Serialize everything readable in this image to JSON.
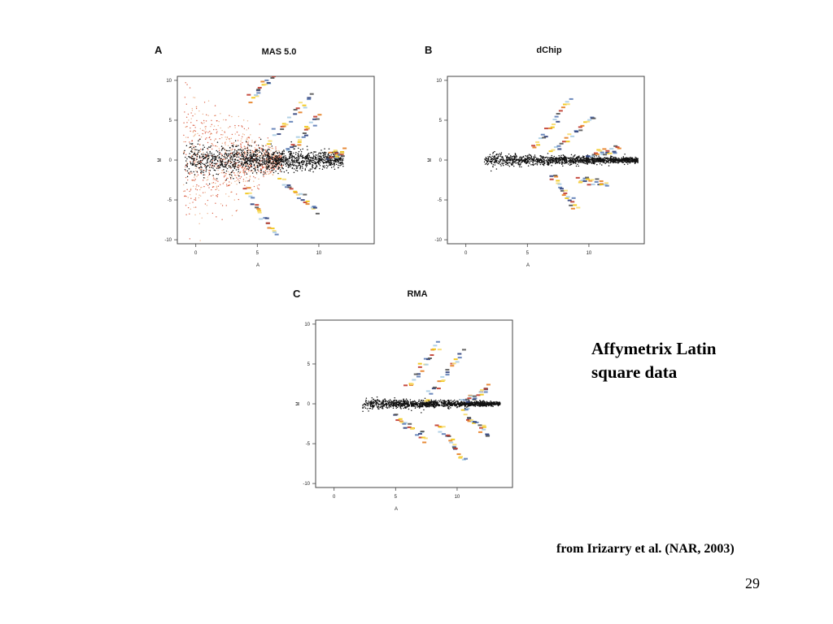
{
  "slide": {
    "caption": "Affymetrix Latin square data",
    "caption_lines": [
      "Affymetrix Latin",
      "square data"
    ],
    "citation": "from Irizarry et al. (NAR, 2003)",
    "page_number": "29"
  },
  "colors": {
    "background_points": "#111111",
    "mas5_noise": "#d23a1a",
    "spike_series": [
      "#c0392b",
      "#e67e22",
      "#f1c40f",
      "#f7dc6f",
      "#a9cce3",
      "#5b7bb5",
      "#2c3e7a",
      "#555555"
    ]
  },
  "chart_data": [
    {
      "id": "A",
      "type": "scatter",
      "panel_label": "A",
      "title": "MAS 5.0",
      "xlabel": "A",
      "ylabel": "M",
      "xlim": [
        -1.5,
        14.5
      ],
      "ylim": [
        -10.5,
        10.5
      ],
      "xticks": [
        0,
        5,
        10
      ],
      "yticks": [
        10,
        5,
        0,
        -5,
        -10
      ],
      "cloud": {
        "x_range": [
          -1,
          12
        ],
        "spread": 0.7,
        "noise": true
      },
      "spike_bands": [
        {
          "start": [
            4.5,
            7.5
          ],
          "end": [
            6.8,
            11.5
          ]
        },
        {
          "start": [
            6.0,
            2.5
          ],
          "end": [
            9.5,
            8.0
          ]
        },
        {
          "start": [
            7.5,
            1.0
          ],
          "end": [
            10.0,
            5.5
          ]
        },
        {
          "start": [
            11.0,
            0.5
          ],
          "end": [
            12.0,
            1.0
          ]
        },
        {
          "start": [
            4.0,
            -3.5
          ],
          "end": [
            6.5,
            -9.5
          ]
        },
        {
          "start": [
            7.0,
            -2.5
          ],
          "end": [
            10.0,
            -6.5
          ]
        }
      ]
    },
    {
      "id": "B",
      "type": "scatter",
      "panel_label": "B",
      "title": "dChip",
      "xlabel": "A",
      "ylabel": "M",
      "xlim": [
        -1.5,
        14.5
      ],
      "ylim": [
        -10.5,
        10.5
      ],
      "xticks": [
        0,
        5,
        10
      ],
      "yticks": [
        10,
        5,
        0,
        -5,
        -10
      ],
      "cloud": {
        "x_range": [
          1.5,
          14.0
        ],
        "spread": 0.25,
        "noise": false
      },
      "spike_bands": [
        {
          "start": [
            5.5,
            1.5
          ],
          "end": [
            8.5,
            7.5
          ]
        },
        {
          "start": [
            7.0,
            1.0
          ],
          "end": [
            10.5,
            5.5
          ]
        },
        {
          "start": [
            10.0,
            0.5
          ],
          "end": [
            12.5,
            1.5
          ]
        },
        {
          "start": [
            7.0,
            -2.0
          ],
          "end": [
            9.0,
            -6.0
          ]
        },
        {
          "start": [
            9.0,
            -2.5
          ],
          "end": [
            11.5,
            -3.0
          ]
        }
      ]
    },
    {
      "id": "C",
      "type": "scatter",
      "panel_label": "C",
      "title": "RMA",
      "xlabel": "A",
      "ylabel": "M",
      "xlim": [
        -1.5,
        14.5
      ],
      "ylim": [
        -10.5,
        10.5
      ],
      "xticks": [
        0,
        5,
        10
      ],
      "yticks": [
        10,
        5,
        0,
        -5,
        -10
      ],
      "cloud": {
        "x_range": [
          2.3,
          13.5
        ],
        "spread": 0.2,
        "noise": false
      },
      "spike_bands": [
        {
          "start": [
            6.0,
            2.0
          ],
          "end": [
            8.5,
            7.5
          ]
        },
        {
          "start": [
            7.5,
            0.5
          ],
          "end": [
            10.5,
            6.5
          ]
        },
        {
          "start": [
            10.5,
            0.5
          ],
          "end": [
            12.5,
            2.0
          ]
        },
        {
          "start": [
            5.0,
            -1.5
          ],
          "end": [
            7.5,
            -4.5
          ]
        },
        {
          "start": [
            8.5,
            -2.5
          ],
          "end": [
            10.5,
            -7.0
          ]
        },
        {
          "start": [
            10.5,
            -1.0
          ],
          "end": [
            12.5,
            -4.0
          ]
        }
      ]
    }
  ]
}
